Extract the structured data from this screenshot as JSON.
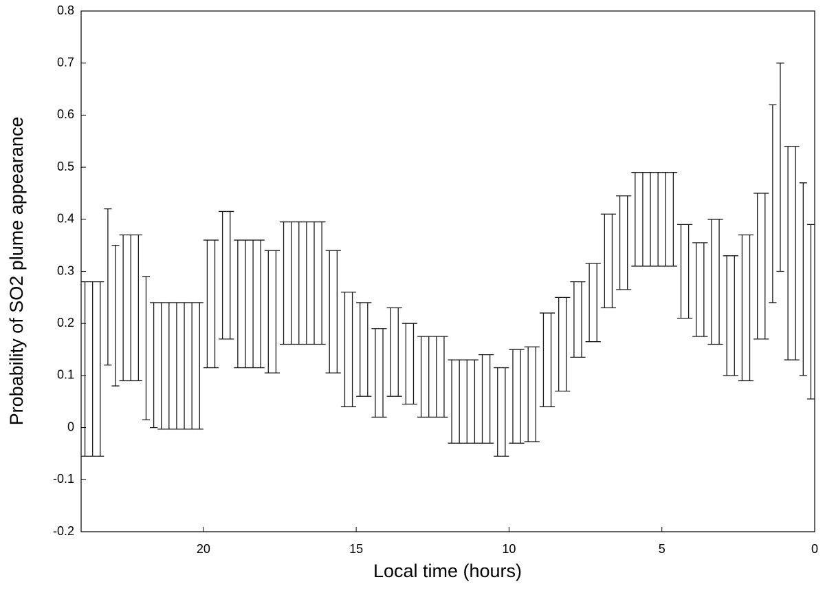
{
  "chart_data": {
    "type": "errorbar",
    "x_label": "Local time (hours)",
    "y_label": "Probability of SO2 plume appearance",
    "xlim": [
      24,
      0
    ],
    "xticks": [
      20,
      15,
      10,
      5,
      0
    ],
    "ylim": [
      -0.2,
      0.8
    ],
    "yticks": [
      -0.2,
      -0.1,
      0,
      0.1,
      0.2,
      0.3,
      0.4,
      0.5,
      0.6,
      0.7,
      0.8
    ],
    "color": "#1a1a1a",
    "x": [
      23.875,
      23.625,
      23.375,
      23.125,
      22.875,
      22.625,
      22.375,
      22.125,
      21.875,
      21.625,
      21.375,
      21.125,
      20.875,
      20.625,
      20.375,
      20.125,
      19.875,
      19.625,
      19.375,
      19.125,
      18.875,
      18.625,
      18.375,
      18.125,
      17.875,
      17.625,
      17.375,
      17.125,
      16.875,
      16.625,
      16.375,
      16.125,
      15.875,
      15.625,
      15.375,
      15.125,
      14.875,
      14.625,
      14.375,
      14.125,
      13.875,
      13.625,
      13.375,
      13.125,
      12.875,
      12.625,
      12.375,
      12.125,
      11.875,
      11.625,
      11.375,
      11.125,
      10.875,
      10.625,
      10.375,
      10.125,
      9.875,
      9.625,
      9.375,
      9.125,
      8.875,
      8.625,
      8.375,
      8.125,
      7.875,
      7.625,
      7.375,
      7.125,
      6.875,
      6.625,
      6.375,
      6.125,
      5.875,
      5.625,
      5.375,
      5.125,
      4.875,
      4.625,
      4.375,
      4.125,
      3.875,
      3.625,
      3.375,
      3.125,
      2.875,
      2.625,
      2.375,
      2.125,
      1.875,
      1.625,
      1.375,
      1.125,
      0.875,
      0.625,
      0.375,
      0.125
    ],
    "values": [
      0.1125,
      0.1125,
      0.1125,
      0.27,
      0.215,
      0.23,
      0.23,
      0.23,
      0.1525,
      0.12,
      0.1185,
      0.1185,
      0.1185,
      0.1185,
      0.1185,
      0.1185,
      0.2375,
      0.2375,
      0.2925,
      0.2925,
      0.2375,
      0.2375,
      0.2375,
      0.2375,
      0.2225,
      0.2225,
      0.2775,
      0.2775,
      0.2775,
      0.2775,
      0.2775,
      0.2775,
      0.2225,
      0.2225,
      0.15,
      0.15,
      0.15,
      0.15,
      0.105,
      0.105,
      0.145,
      0.145,
      0.1225,
      0.1225,
      0.0975,
      0.0975,
      0.0975,
      0.0975,
      0.05,
      0.05,
      0.05,
      0.05,
      0.055,
      0.055,
      0.03,
      0.03,
      0.06,
      0.06,
      0.064,
      0.064,
      0.13,
      0.13,
      0.16,
      0.16,
      0.2075,
      0.2075,
      0.24,
      0.24,
      0.32,
      0.32,
      0.355,
      0.355,
      0.4,
      0.4,
      0.4,
      0.4,
      0.4,
      0.4,
      0.3,
      0.3,
      0.265,
      0.265,
      0.28,
      0.28,
      0.215,
      0.215,
      0.23,
      0.23,
      0.31,
      0.31,
      0.43,
      0.5,
      0.335,
      0.335,
      0.285,
      0.2225
    ],
    "errors": [
      0.1675,
      0.1675,
      0.1675,
      0.15,
      0.135,
      0.14,
      0.14,
      0.14,
      0.1375,
      0.12,
      0.1215,
      0.1215,
      0.1215,
      0.1215,
      0.1215,
      0.1215,
      0.1225,
      0.1225,
      0.1225,
      0.1225,
      0.1225,
      0.1225,
      0.1225,
      0.1225,
      0.1175,
      0.1175,
      0.1175,
      0.1175,
      0.1175,
      0.1175,
      0.1175,
      0.1175,
      0.1175,
      0.1175,
      0.11,
      0.11,
      0.09,
      0.09,
      0.085,
      0.085,
      0.085,
      0.085,
      0.0775,
      0.0775,
      0.0775,
      0.0775,
      0.0775,
      0.0775,
      0.08,
      0.08,
      0.08,
      0.08,
      0.085,
      0.085,
      0.085,
      0.085,
      0.09,
      0.09,
      0.091,
      0.091,
      0.09,
      0.09,
      0.09,
      0.09,
      0.0725,
      0.0725,
      0.075,
      0.075,
      0.09,
      0.09,
      0.09,
      0.09,
      0.09,
      0.09,
      0.09,
      0.09,
      0.09,
      0.09,
      0.09,
      0.09,
      0.09,
      0.09,
      0.12,
      0.12,
      0.115,
      0.115,
      0.14,
      0.14,
      0.14,
      0.14,
      0.19,
      0.2,
      0.205,
      0.205,
      0.185,
      0.1675
    ]
  }
}
